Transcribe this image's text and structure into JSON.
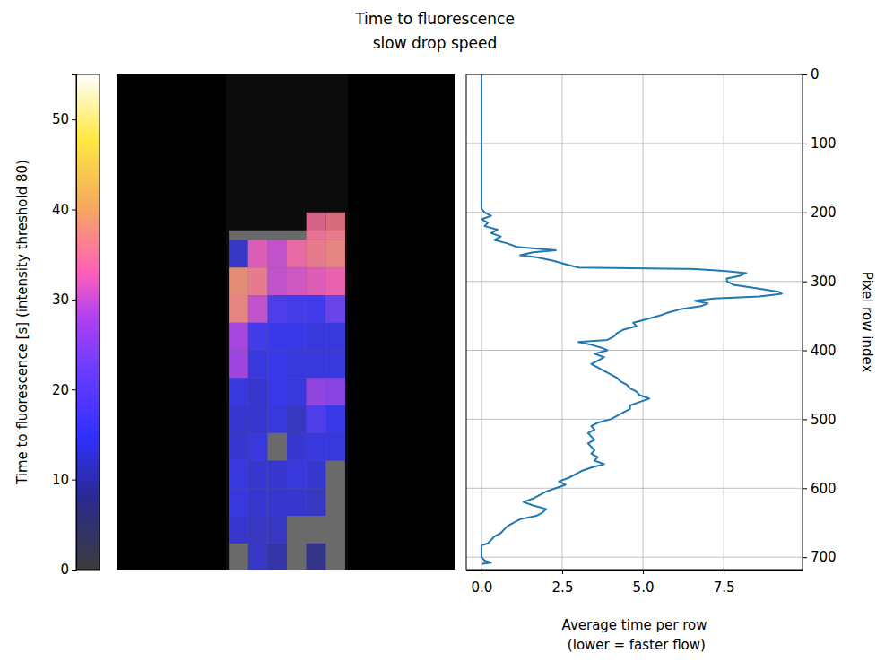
{
  "chart_data": [
    {
      "type": "heatmap",
      "title": "Time to fluorescence",
      "subtitle": "slow drop speed",
      "xlim": [
        0,
        488
      ],
      "ylim": [
        718,
        0
      ],
      "tick_labels": false,
      "x_edges": [
        162,
        190,
        218,
        246,
        274,
        302,
        330
      ],
      "y_edges": [
        200,
        240,
        280,
        320,
        360,
        400,
        440,
        480,
        520,
        560,
        600,
        640,
        680,
        718
      ],
      "cells": [
        [
          null,
          null,
          null,
          null,
          35,
          36
        ],
        [
          12,
          32,
          30,
          34,
          36,
          37
        ],
        [
          38,
          36,
          30,
          31,
          32,
          33
        ],
        [
          37,
          30,
          18,
          17,
          16,
          22
        ],
        [
          28,
          16,
          15,
          15,
          14,
          14
        ],
        [
          27,
          14,
          15,
          14,
          14,
          14
        ],
        [
          14,
          13,
          15,
          14,
          26,
          25
        ],
        [
          13,
          13,
          14,
          12,
          18,
          15
        ],
        [
          13,
          14,
          null,
          13,
          14,
          14
        ],
        [
          14,
          13,
          13,
          14,
          13,
          null
        ],
        [
          14,
          13,
          13,
          13,
          12,
          null
        ],
        [
          13,
          12,
          12,
          null,
          null,
          null
        ],
        [
          null,
          12,
          10,
          null,
          8,
          null
        ]
      ],
      "colorbar": {
        "label": "Time to fluorescence [s] (intensity threshold 80)",
        "range": [
          0,
          55
        ],
        "ticks": [
          0,
          10,
          20,
          30,
          40,
          50
        ]
      }
    },
    {
      "type": "line",
      "xlabel": "Average time per row\n (lower = faster flow)",
      "ylabel": "Pixel row index",
      "color": "#1f77b4",
      "grid": true,
      "xlim": [
        -0.47,
        9.94
      ],
      "xticks": [
        {
          "value": 0,
          "label": "0.0"
        },
        2.5,
        {
          "value": 5,
          "label": "5.0"
        },
        7.5
      ],
      "ylim": [
        718,
        0
      ],
      "yticks": [
        0,
        100,
        200,
        300,
        400,
        500,
        600,
        700
      ],
      "rows": [
        0,
        100,
        195,
        200,
        205,
        210,
        215,
        220,
        225,
        230,
        235,
        240,
        245,
        250,
        255,
        258,
        262,
        265,
        270,
        275,
        280,
        282,
        285,
        288,
        292,
        296,
        300,
        305,
        310,
        315,
        318,
        322,
        325,
        328,
        332,
        336,
        340,
        345,
        350,
        355,
        360,
        365,
        370,
        375,
        380,
        385,
        388,
        392,
        396,
        400,
        405,
        410,
        415,
        420,
        425,
        430,
        435,
        440,
        445,
        450,
        455,
        460,
        465,
        470,
        475,
        480,
        485,
        490,
        495,
        500,
        505,
        510,
        515,
        520,
        525,
        530,
        535,
        540,
        545,
        550,
        555,
        560,
        565,
        570,
        575,
        580,
        585,
        590,
        595,
        600,
        605,
        610,
        615,
        620,
        625,
        630,
        635,
        640,
        645,
        650,
        655,
        660,
        665,
        670,
        675,
        680,
        683,
        690,
        700,
        705,
        708,
        710
      ],
      "values": [
        0,
        0,
        0,
        0.1,
        0.3,
        0,
        0.2,
        0.1,
        0.5,
        0.3,
        0.6,
        0.4,
        0.8,
        1.1,
        2.3,
        1.6,
        1.2,
        1.7,
        2.2,
        2.6,
        3.0,
        6.5,
        7.5,
        8.2,
        8.0,
        7.6,
        7.6,
        7.8,
        8.5,
        9.2,
        9.3,
        8.6,
        7.2,
        6.6,
        7.0,
        6.8,
        6.2,
        5.8,
        5.5,
        5.1,
        4.7,
        4.8,
        4.4,
        4.2,
        4.1,
        3.9,
        3.0,
        3.4,
        3.7,
        3.9,
        3.5,
        3.8,
        3.6,
        3.4,
        3.6,
        3.8,
        4.0,
        4.2,
        4.3,
        4.5,
        4.6,
        4.8,
        4.9,
        5.2,
        4.9,
        4.6,
        4.6,
        4.4,
        4.2,
        4.0,
        3.6,
        3.4,
        3.5,
        3.3,
        3.4,
        3.5,
        3.3,
        3.4,
        3.5,
        3.4,
        3.6,
        3.5,
        3.8,
        3.4,
        3.1,
        2.9,
        2.7,
        2.4,
        2.6,
        2.3,
        2.0,
        1.8,
        1.6,
        1.3,
        1.6,
        2.0,
        1.9,
        1.7,
        1.2,
        1.0,
        0.8,
        0.7,
        0.6,
        0.4,
        0.3,
        0.2,
        0.0,
        0.0,
        0.0,
        0.1,
        0.3,
        0.0
      ]
    }
  ]
}
